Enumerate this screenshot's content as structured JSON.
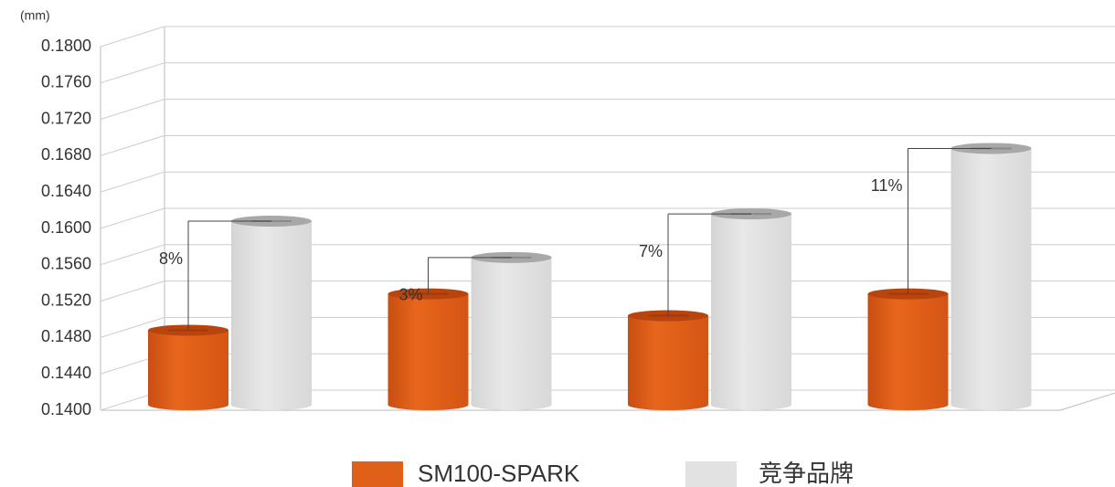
{
  "chart_data": {
    "type": "bar3d",
    "unit_label": "(mm)",
    "categories": [
      null,
      null,
      null,
      null
    ],
    "series": [
      {
        "name": "SM100-SPARK",
        "color": "#e0601a",
        "values": [
          0.1488,
          0.1528,
          0.1504,
          0.1528
        ]
      },
      {
        "name": "竞争品牌",
        "color": "#e2e2e2",
        "values": [
          0.1608,
          0.1568,
          0.1616,
          0.1688
        ]
      }
    ],
    "annotations": [
      "8%",
      "3%",
      "7%",
      "11%"
    ],
    "ylim": [
      0.14,
      0.18
    ],
    "yticks": [
      {
        "value": 0.14,
        "label": "0.1400"
      },
      {
        "value": 0.144,
        "label": "0.1440"
      },
      {
        "value": 0.148,
        "label": "0.1480"
      },
      {
        "value": 0.152,
        "label": "0.1520"
      },
      {
        "value": 0.156,
        "label": "0.1560"
      },
      {
        "value": 0.16,
        "label": "0.1600"
      },
      {
        "value": 0.164,
        "label": "0.1640"
      },
      {
        "value": 0.168,
        "label": "0.1680"
      },
      {
        "value": 0.172,
        "label": "0.1720"
      },
      {
        "value": 0.176,
        "label": "0.1760"
      },
      {
        "value": 0.18,
        "label": "0.1800"
      }
    ],
    "grid": true,
    "legend": "bottom"
  }
}
